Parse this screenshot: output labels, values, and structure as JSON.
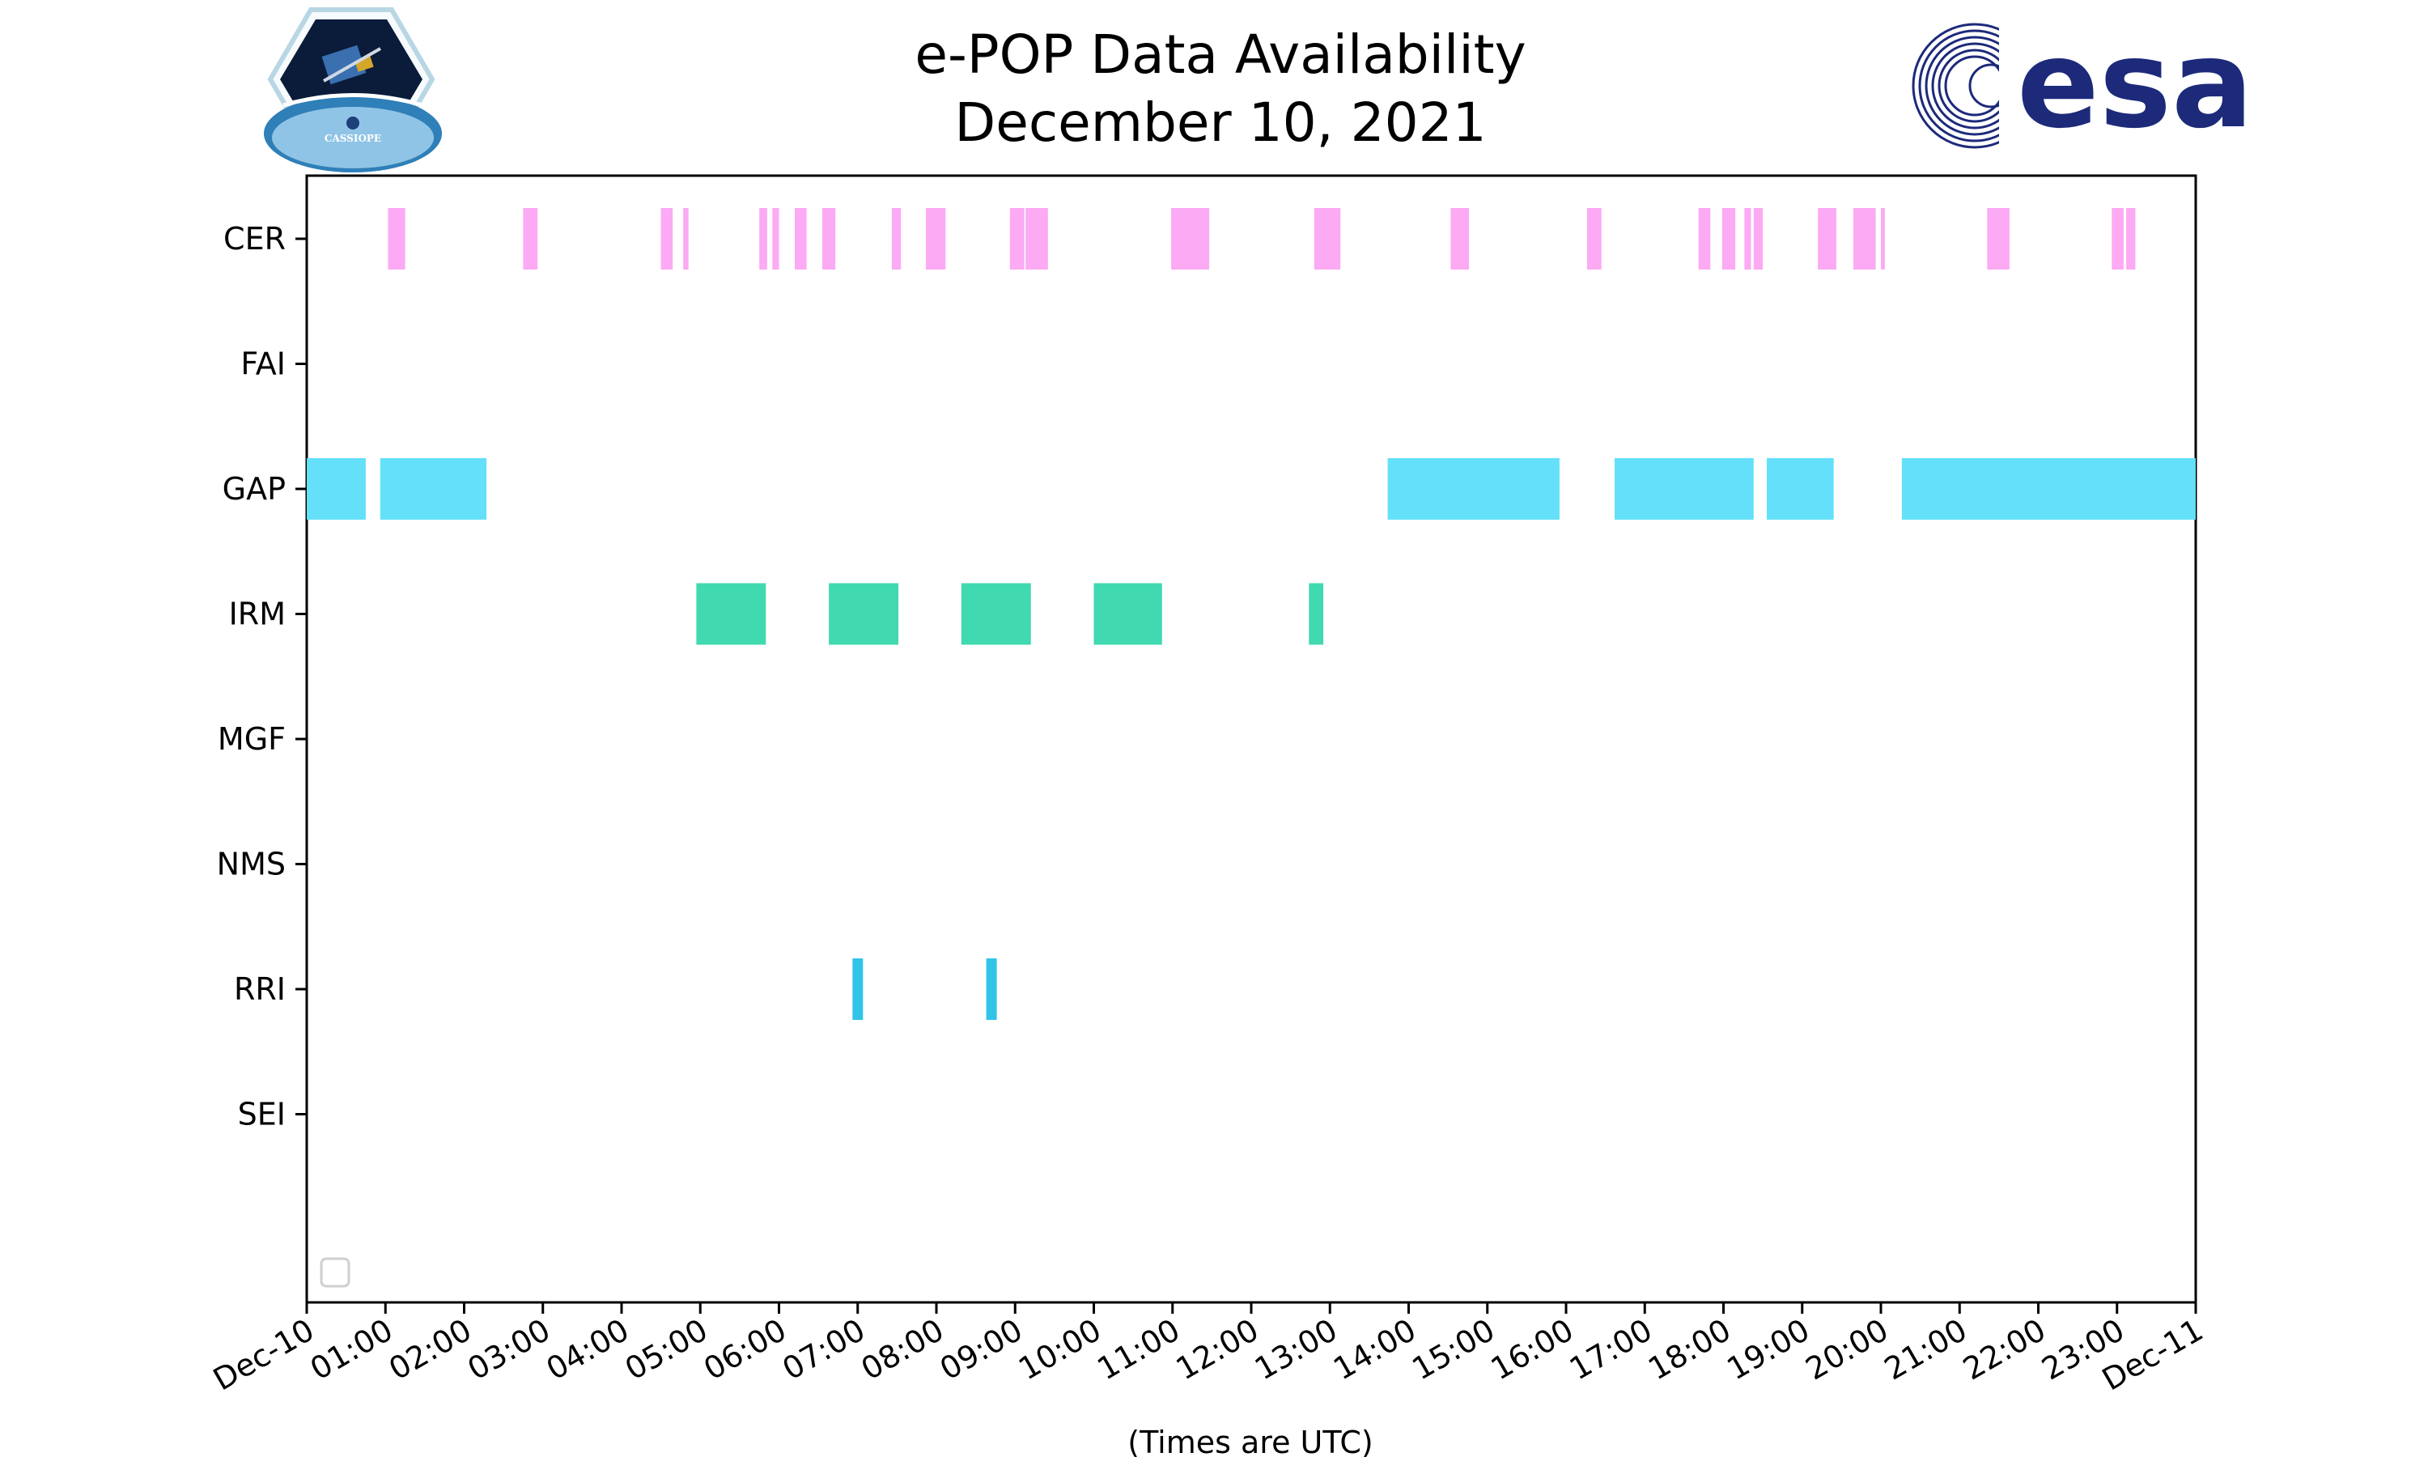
{
  "header": {
    "title_line1": "e-POP Data Availability",
    "title_line2": "December 10, 2021"
  },
  "logos": {
    "left": {
      "name": "cassiope-mission-logo",
      "text": "CASSIOPE"
    },
    "right": {
      "name": "esa-logo",
      "text": "esa",
      "color": "#1d2a7a"
    }
  },
  "chart_data": {
    "type": "timeline",
    "title": "e-POP Data Availability\nDecember 10, 2021",
    "xlabel": "(Times are UTC)",
    "ylabel": "",
    "x_range_hours": [
      0,
      24
    ],
    "x_tick_labels": [
      "Dec-10",
      "01:00",
      "02:00",
      "03:00",
      "04:00",
      "05:00",
      "06:00",
      "07:00",
      "08:00",
      "09:00",
      "10:00",
      "11:00",
      "12:00",
      "13:00",
      "14:00",
      "15:00",
      "16:00",
      "17:00",
      "18:00",
      "19:00",
      "20:00",
      "21:00",
      "22:00",
      "23:00",
      "Dec-11"
    ],
    "categories": [
      "CER",
      "FAI",
      "GAP",
      "IRM",
      "MGF",
      "NMS",
      "RRI",
      "SEI"
    ],
    "grid": false,
    "legend": {
      "placement": "lower-left",
      "entries": []
    },
    "series": [
      {
        "name": "CER",
        "color": "#fcaaf3",
        "intervals": [
          [
            "01:02",
            "01:15"
          ],
          [
            "02:45",
            "02:56"
          ],
          [
            "04:30",
            "04:39"
          ],
          [
            "04:47",
            "04:51"
          ],
          [
            "05:45",
            "05:51"
          ],
          [
            "05:55",
            "06:00"
          ],
          [
            "06:12",
            "06:21"
          ],
          [
            "06:33",
            "06:43"
          ],
          [
            "07:26",
            "07:33"
          ],
          [
            "07:52",
            "08:07"
          ],
          [
            "08:56",
            "09:07"
          ],
          [
            "09:08",
            "09:25"
          ],
          [
            "10:59",
            "11:28"
          ],
          [
            "12:48",
            "13:08"
          ],
          [
            "14:32",
            "14:46"
          ],
          [
            "16:16",
            "16:27"
          ],
          [
            "17:41",
            "17:50"
          ],
          [
            "17:59",
            "18:09"
          ],
          [
            "18:16",
            "18:21"
          ],
          [
            "18:23",
            "18:30"
          ],
          [
            "19:12",
            "19:26"
          ],
          [
            "19:39",
            "19:56"
          ],
          [
            "20:00",
            "20:03"
          ],
          [
            "21:21",
            "21:38"
          ],
          [
            "22:56",
            "23:05"
          ],
          [
            "23:07",
            "23:14"
          ]
        ]
      },
      {
        "name": "FAI",
        "color": "#f5a623",
        "intervals": []
      },
      {
        "name": "GAP",
        "color": "#64e0fa",
        "intervals": [
          [
            "00:00",
            "00:45"
          ],
          [
            "00:56",
            "02:17"
          ],
          [
            "13:44",
            "15:55"
          ],
          [
            "16:37",
            "18:23"
          ],
          [
            "18:33",
            "19:24"
          ],
          [
            "20:16",
            "24:00"
          ]
        ]
      },
      {
        "name": "IRM",
        "color": "#40d9b0",
        "intervals": [
          [
            "04:57",
            "05:50"
          ],
          [
            "06:38",
            "07:31"
          ],
          [
            "08:19",
            "09:12"
          ],
          [
            "10:00",
            "10:52"
          ],
          [
            "12:44",
            "12:55"
          ]
        ]
      },
      {
        "name": "MGF",
        "color": "#8a7cf0",
        "intervals": []
      },
      {
        "name": "NMS",
        "color": "#f06a6a",
        "intervals": []
      },
      {
        "name": "RRI",
        "color": "#32c3e8",
        "intervals": [
          [
            "06:56",
            "07:04"
          ],
          [
            "08:38",
            "08:46"
          ]
        ]
      },
      {
        "name": "SEI",
        "color": "#a0d468",
        "intervals": []
      }
    ]
  }
}
